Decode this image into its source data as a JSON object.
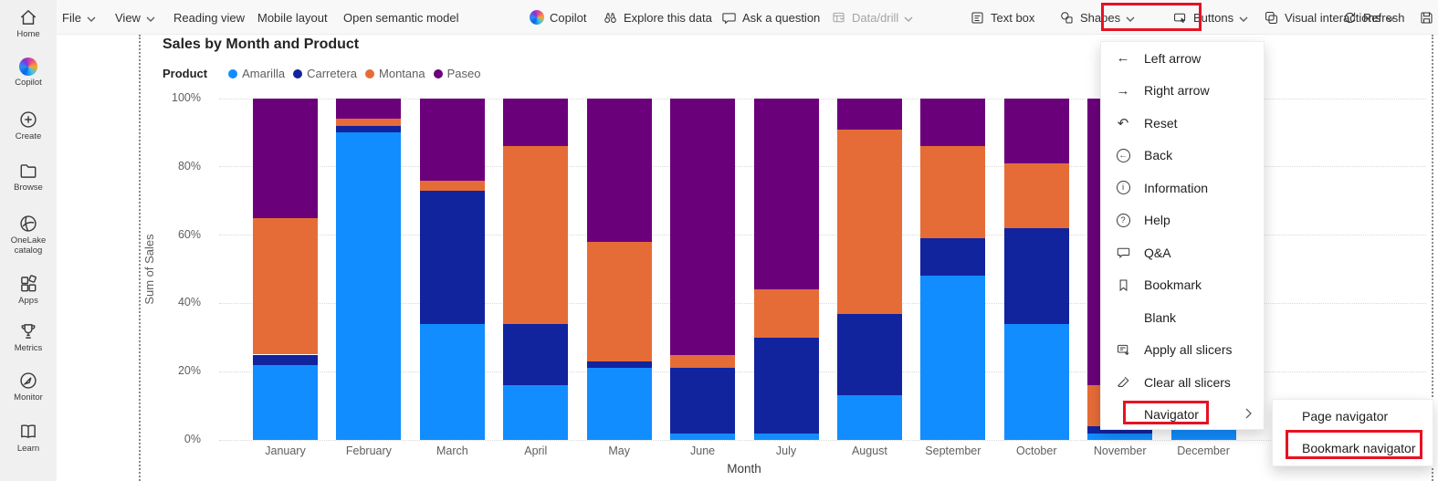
{
  "colors": {
    "highlight_red": "#E81123",
    "amarilla": "#118DFF",
    "carretera": "#12239E",
    "montana": "#E66C37",
    "paseo": "#6B007B"
  },
  "sidebar": {
    "items": [
      {
        "label": "Home"
      },
      {
        "label": "Copilot"
      },
      {
        "label": "Create"
      },
      {
        "label": "Browse"
      },
      {
        "label": "OneLake catalog"
      },
      {
        "label": "Apps"
      },
      {
        "label": "Metrics"
      },
      {
        "label": "Monitor"
      },
      {
        "label": "Learn"
      }
    ]
  },
  "toolbar": {
    "file": "File",
    "view": "View",
    "reading_view": "Reading view",
    "mobile_layout": "Mobile layout",
    "open_semantic_model": "Open semantic model",
    "copilot": "Copilot",
    "explore": "Explore this data",
    "ask_question": "Ask a question",
    "data_drill": "Data/drill",
    "text_box": "Text box",
    "shapes": "Shapes",
    "buttons": "Buttons",
    "visual_interactions": "Visual interactions",
    "refresh": "Refresh"
  },
  "chart_data": {
    "type": "bar",
    "variant": "100%-stacked-column",
    "title": "Sales by Month and Product",
    "legend_title": "Product",
    "legend_position": "top",
    "xlabel": "Month",
    "ylabel": "Sum of Sales",
    "ylim": [
      0,
      100
    ],
    "y_ticks": [
      "0%",
      "20%",
      "40%",
      "60%",
      "80%",
      "100%"
    ],
    "grid": "dotted-horizontal",
    "categories": [
      "January",
      "February",
      "March",
      "April",
      "May",
      "June",
      "July",
      "August",
      "September",
      "October",
      "November",
      "December"
    ],
    "series": [
      {
        "name": "Amarilla",
        "color": "#118DFF",
        "values": [
          22,
          90,
          34,
          16,
          21,
          2,
          2,
          13,
          48,
          34,
          2,
          3
        ]
      },
      {
        "name": "Carretera",
        "color": "#12239E",
        "values": [
          3,
          2,
          39,
          18,
          2,
          19,
          28,
          24,
          11,
          28,
          2,
          0
        ]
      },
      {
        "name": "Montana",
        "color": "#E66C37",
        "values": [
          40,
          2,
          3,
          52,
          35,
          4,
          14,
          54,
          27,
          19,
          12,
          0
        ]
      },
      {
        "name": "Paseo",
        "color": "#6B007B",
        "values": [
          35,
          6,
          24,
          14,
          42,
          75,
          56,
          9,
          14,
          19,
          84,
          0
        ]
      }
    ],
    "note": "Values in percent of total; November and December bars are partially hidden behind the open Buttons menu"
  },
  "menu": {
    "items": [
      {
        "label": "Left arrow"
      },
      {
        "label": "Right arrow"
      },
      {
        "label": "Reset"
      },
      {
        "label": "Back"
      },
      {
        "label": "Information"
      },
      {
        "label": "Help"
      },
      {
        "label": "Q&A"
      },
      {
        "label": "Bookmark"
      },
      {
        "label": "Blank"
      },
      {
        "label": "Apply all slicers"
      },
      {
        "label": "Clear all slicers"
      },
      {
        "label": "Navigator"
      }
    ]
  },
  "submenu": {
    "items": [
      {
        "label": "Page navigator"
      },
      {
        "label": "Bookmark navigator"
      }
    ]
  }
}
